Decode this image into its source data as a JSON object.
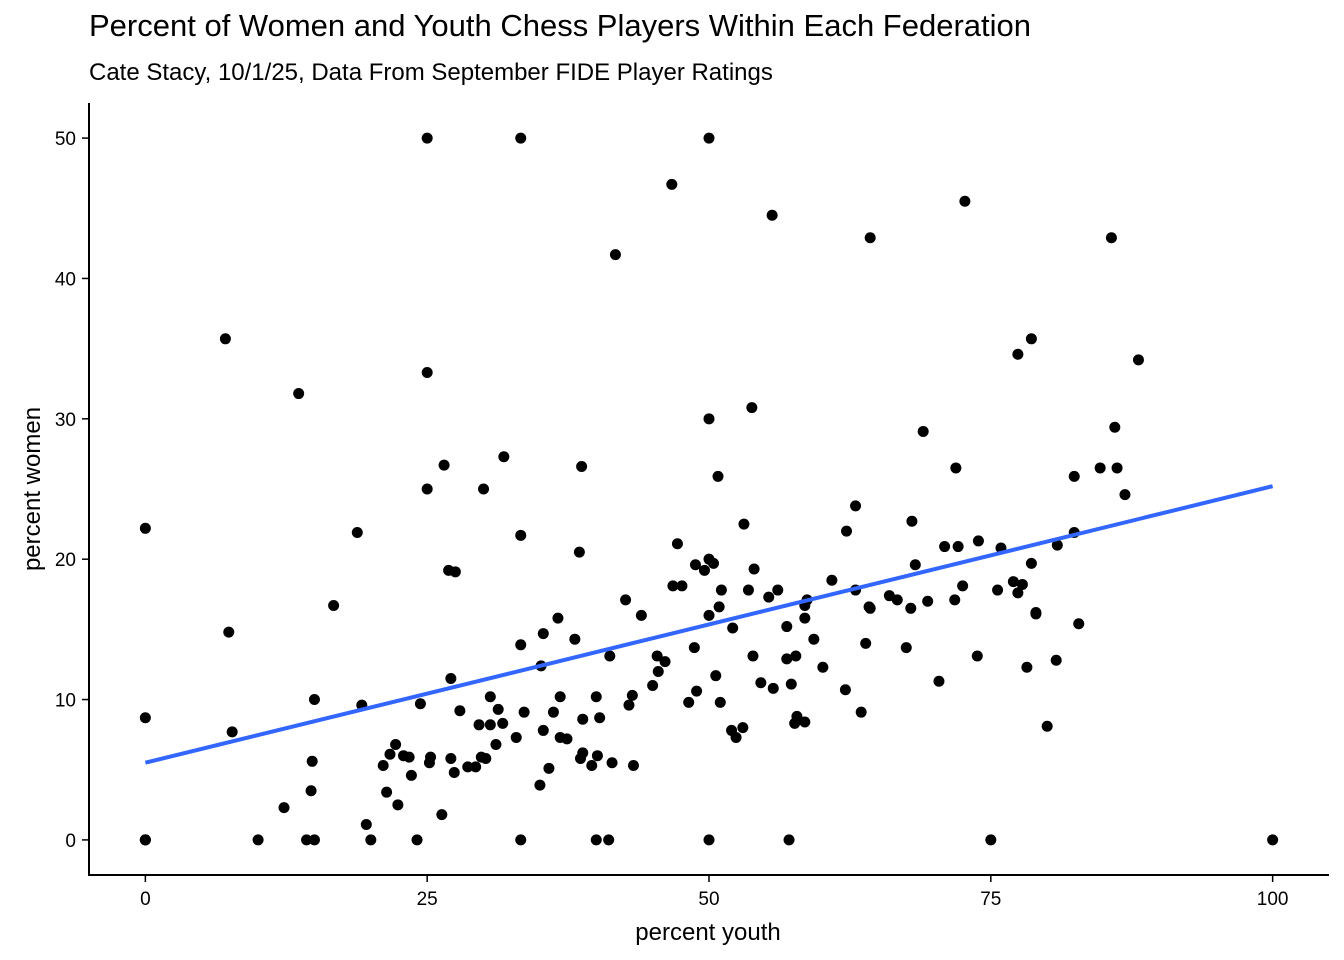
{
  "chart_data": {
    "type": "scatter",
    "title": "Percent of Women and Youth Chess Players Within Each Federation",
    "subtitle": "Cate Stacy, 10/1/25, Data From September FIDE Player Ratings",
    "xlabel": "percent youth",
    "ylabel": "percent women",
    "xlim": [
      -5,
      105
    ],
    "ylim": [
      -2.5,
      52.5
    ],
    "xticks": [
      0,
      25,
      50,
      75,
      100
    ],
    "yticks": [
      0,
      10,
      20,
      30,
      40,
      50
    ],
    "grid": false,
    "colors": {
      "points": "#000000",
      "trend": "#3366FF"
    },
    "trend_line": {
      "x": [
        0,
        100
      ],
      "y": [
        5.5,
        25.2
      ]
    },
    "points": [
      [
        0,
        22.2
      ],
      [
        0,
        8.7
      ],
      [
        0,
        0
      ],
      [
        0,
        0
      ],
      [
        0,
        0
      ],
      [
        7.1,
        35.7
      ],
      [
        7.4,
        14.8
      ],
      [
        7.7,
        7.7
      ],
      [
        10,
        0
      ],
      [
        12.3,
        2.3
      ],
      [
        13.6,
        31.8
      ],
      [
        14.3,
        0
      ],
      [
        14.7,
        3.5
      ],
      [
        14.8,
        5.6
      ],
      [
        15,
        0
      ],
      [
        15,
        10
      ],
      [
        16.7,
        16.7
      ],
      [
        18.8,
        21.9
      ],
      [
        19.2,
        9.6
      ],
      [
        19.6,
        1.1
      ],
      [
        20,
        0
      ],
      [
        21.1,
        5.3
      ],
      [
        21.4,
        3.4
      ],
      [
        21.7,
        6.1
      ],
      [
        22.2,
        6.8
      ],
      [
        22.4,
        2.5
      ],
      [
        22.9,
        6
      ],
      [
        23.4,
        5.9
      ],
      [
        23.6,
        4.6
      ],
      [
        24.1,
        0
      ],
      [
        24.4,
        9.7
      ],
      [
        25,
        50
      ],
      [
        25,
        33.3
      ],
      [
        25,
        25
      ],
      [
        25.2,
        5.5
      ],
      [
        25.3,
        5.9
      ],
      [
        26.3,
        1.8
      ],
      [
        26.5,
        26.7
      ],
      [
        26.9,
        19.2
      ],
      [
        27.1,
        11.5
      ],
      [
        27.1,
        5.8
      ],
      [
        27.4,
        4.8
      ],
      [
        27.5,
        19.1
      ],
      [
        27.9,
        9.2
      ],
      [
        28.6,
        5.2
      ],
      [
        29.3,
        5.2
      ],
      [
        29.6,
        8.2
      ],
      [
        29.8,
        5.9
      ],
      [
        30,
        25
      ],
      [
        30.2,
        5.8
      ],
      [
        30.6,
        10.2
      ],
      [
        30.6,
        8.2
      ],
      [
        31.1,
        6.8
      ],
      [
        31.3,
        9.3
      ],
      [
        31.7,
        8.3
      ],
      [
        31.8,
        27.3
      ],
      [
        32.9,
        7.3
      ],
      [
        33.3,
        50
      ],
      [
        33.3,
        21.7
      ],
      [
        33.3,
        13.9
      ],
      [
        33.3,
        0
      ],
      [
        33.6,
        9.1
      ],
      [
        35,
        3.9
      ],
      [
        35.1,
        12.4
      ],
      [
        35.3,
        14.7
      ],
      [
        35.3,
        7.8
      ],
      [
        35.8,
        5.1
      ],
      [
        36.2,
        9.1
      ],
      [
        36.6,
        15.8
      ],
      [
        36.8,
        7.3
      ],
      [
        36.8,
        10.2
      ],
      [
        37.4,
        7.2
      ],
      [
        38.1,
        14.3
      ],
      [
        38.5,
        20.5
      ],
      [
        38.6,
        5.8
      ],
      [
        38.7,
        26.6
      ],
      [
        38.8,
        8.6
      ],
      [
        38.8,
        6.2
      ],
      [
        39.6,
        5.3
      ],
      [
        40,
        0
      ],
      [
        40,
        10.2
      ],
      [
        40.1,
        6
      ],
      [
        40.3,
        8.7
      ],
      [
        41.1,
        0
      ],
      [
        41.2,
        13.1
      ],
      [
        41.4,
        5.5
      ],
      [
        41.7,
        41.7
      ],
      [
        42.6,
        17.1
      ],
      [
        42.9,
        9.6
      ],
      [
        43.2,
        10.3
      ],
      [
        43.3,
        5.3
      ],
      [
        44,
        16
      ],
      [
        45,
        11
      ],
      [
        45.4,
        13.1
      ],
      [
        45.5,
        12
      ],
      [
        46.1,
        12.7
      ],
      [
        46.7,
        46.7
      ],
      [
        46.8,
        18.1
      ],
      [
        47.2,
        21.1
      ],
      [
        47.6,
        18.1
      ],
      [
        48.2,
        9.8
      ],
      [
        48.7,
        13.7
      ],
      [
        48.8,
        19.6
      ],
      [
        48.9,
        10.6
      ],
      [
        49.6,
        19.2
      ],
      [
        50,
        50
      ],
      [
        50,
        30
      ],
      [
        50,
        20
      ],
      [
        50,
        16
      ],
      [
        50,
        0
      ],
      [
        50.4,
        19.7
      ],
      [
        50.6,
        11.7
      ],
      [
        50.8,
        25.9
      ],
      [
        50.9,
        16.6
      ],
      [
        51,
        9.8
      ],
      [
        51.1,
        17.8
      ],
      [
        52,
        7.8
      ],
      [
        52.1,
        15.1
      ],
      [
        52.4,
        7.3
      ],
      [
        53,
        8
      ],
      [
        53.1,
        22.5
      ],
      [
        53.5,
        17.8
      ],
      [
        53.8,
        30.8
      ],
      [
        53.9,
        13.1
      ],
      [
        54,
        19.3
      ],
      [
        54.6,
        11.2
      ],
      [
        55.3,
        17.3
      ],
      [
        55.6,
        44.5
      ],
      [
        55.7,
        10.8
      ],
      [
        56.1,
        17.8
      ],
      [
        56.9,
        15.2
      ],
      [
        56.9,
        12.9
      ],
      [
        57.3,
        11.1
      ],
      [
        57.1,
        0
      ],
      [
        57.6,
        8.3
      ],
      [
        57.7,
        13.1
      ],
      [
        57.8,
        8.8
      ],
      [
        58.5,
        8.4
      ],
      [
        58.5,
        16.7
      ],
      [
        58.5,
        15.8
      ],
      [
        58.7,
        17.1
      ],
      [
        59.3,
        14.3
      ],
      [
        60.1,
        12.3
      ],
      [
        60.9,
        18.5
      ],
      [
        62.1,
        10.7
      ],
      [
        62.2,
        22
      ],
      [
        63,
        23.8
      ],
      [
        63,
        17.8
      ],
      [
        63.5,
        9.1
      ],
      [
        63.9,
        14
      ],
      [
        64.2,
        16.6
      ],
      [
        64.3,
        42.9
      ],
      [
        64.3,
        16.5
      ],
      [
        66,
        17.4
      ],
      [
        66.7,
        17.1
      ],
      [
        67.5,
        13.7
      ],
      [
        67.9,
        16.5
      ],
      [
        68,
        22.7
      ],
      [
        68.3,
        19.6
      ],
      [
        69,
        29.1
      ],
      [
        69.4,
        17
      ],
      [
        70.4,
        11.3
      ],
      [
        70.9,
        20.9
      ],
      [
        71.8,
        17.1
      ],
      [
        71.9,
        26.5
      ],
      [
        72.1,
        20.9
      ],
      [
        72.5,
        18.1
      ],
      [
        72.7,
        45.5
      ],
      [
        73.8,
        13.1
      ],
      [
        73.9,
        21.3
      ],
      [
        75,
        0
      ],
      [
        75.6,
        17.8
      ],
      [
        75.9,
        20.8
      ],
      [
        77,
        18.4
      ],
      [
        77.4,
        17.6
      ],
      [
        77.4,
        34.6
      ],
      [
        77.8,
        18.2
      ],
      [
        78.2,
        12.3
      ],
      [
        78.6,
        35.7
      ],
      [
        78.6,
        19.7
      ],
      [
        79,
        16.2
      ],
      [
        79,
        16.1
      ],
      [
        80,
        8.1
      ],
      [
        80.8,
        12.8
      ],
      [
        80.9,
        21
      ],
      [
        82.4,
        25.9
      ],
      [
        82.4,
        21.9
      ],
      [
        82.8,
        15.4
      ],
      [
        84.7,
        26.5
      ],
      [
        85.7,
        42.9
      ],
      [
        86,
        29.4
      ],
      [
        86.2,
        26.5
      ],
      [
        86.9,
        24.6
      ],
      [
        88.1,
        34.2
      ],
      [
        100,
        0
      ]
    ]
  }
}
